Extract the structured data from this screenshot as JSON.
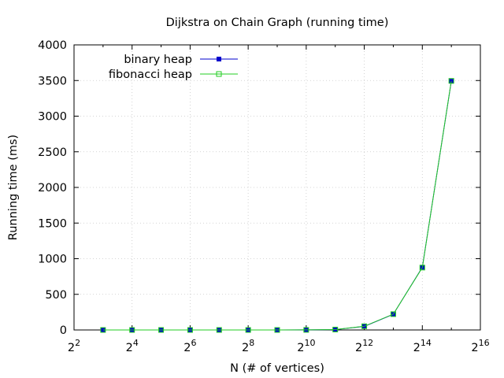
{
  "chart_data": {
    "type": "line",
    "title": "Dijkstra on Chain Graph (running time)",
    "xlabel": "N (# of vertices)",
    "ylabel": "Running time (ms)",
    "x_scale": "log2",
    "xlim": [
      4,
      65536
    ],
    "ylim": [
      0,
      4000
    ],
    "x_ticks": [
      {
        "value": 4,
        "base": "2",
        "exp": "2"
      },
      {
        "value": 16,
        "base": "2",
        "exp": "4"
      },
      {
        "value": 64,
        "base": "2",
        "exp": "6"
      },
      {
        "value": 256,
        "base": "2",
        "exp": "8"
      },
      {
        "value": 1024,
        "base": "2",
        "exp": "10"
      },
      {
        "value": 4096,
        "base": "2",
        "exp": "12"
      },
      {
        "value": 16384,
        "base": "2",
        "exp": "14"
      },
      {
        "value": 65536,
        "base": "2",
        "exp": "16"
      }
    ],
    "y_ticks": [
      0,
      500,
      1000,
      1500,
      2000,
      2500,
      3000,
      3500,
      4000
    ],
    "grid": true,
    "legend_position": "top-left",
    "x": [
      8,
      16,
      32,
      64,
      128,
      256,
      512,
      1024,
      2048,
      4096,
      8192,
      16384,
      32768
    ],
    "series": [
      {
        "name": "binary heap",
        "color": "#0000cc",
        "marker": "filled-square",
        "values": [
          0,
          0,
          0,
          0,
          0,
          0,
          0,
          1,
          5,
          50,
          220,
          880,
          3490
        ]
      },
      {
        "name": "fibonacci heap",
        "color": "#22cc22",
        "marker": "open-square",
        "values": [
          0,
          0,
          0,
          0,
          0,
          0,
          0,
          1,
          6,
          52,
          222,
          875,
          3495
        ]
      }
    ]
  }
}
